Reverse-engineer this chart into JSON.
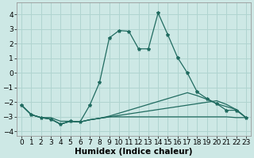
{
  "xlabel": "Humidex (Indice chaleur)",
  "xlim": [
    -0.5,
    23.5
  ],
  "ylim": [
    -4.3,
    4.8
  ],
  "xticks": [
    0,
    1,
    2,
    3,
    4,
    5,
    6,
    7,
    8,
    9,
    10,
    11,
    12,
    13,
    14,
    15,
    16,
    17,
    18,
    19,
    20,
    21,
    22,
    23
  ],
  "yticks": [
    -4,
    -3,
    -2,
    -1,
    0,
    1,
    2,
    3,
    4
  ],
  "bg_color": "#cde8e5",
  "grid_color": "#b0d4d0",
  "line_color": "#206b60",
  "line1": [
    [
      0,
      -2.2
    ],
    [
      1,
      -2.85
    ],
    [
      2,
      -3.05
    ],
    [
      3,
      -3.15
    ],
    [
      4,
      -3.5
    ],
    [
      5,
      -3.3
    ],
    [
      6,
      -3.35
    ],
    [
      7,
      -2.2
    ],
    [
      8,
      -0.65
    ],
    [
      9,
      2.4
    ],
    [
      10,
      2.9
    ],
    [
      11,
      2.85
    ],
    [
      12,
      1.65
    ],
    [
      13,
      1.65
    ],
    [
      14,
      4.1
    ],
    [
      15,
      2.6
    ],
    [
      16,
      1.05
    ],
    [
      17,
      0.0
    ],
    [
      18,
      -1.3
    ],
    [
      19,
      -1.75
    ],
    [
      20,
      -2.1
    ],
    [
      21,
      -2.55
    ],
    [
      22,
      -2.55
    ],
    [
      23,
      -3.05
    ]
  ],
  "line2": [
    [
      0,
      -2.2
    ],
    [
      1,
      -2.85
    ],
    [
      2,
      -3.05
    ],
    [
      3,
      -3.15
    ],
    [
      4,
      -3.5
    ],
    [
      5,
      -3.3
    ],
    [
      6,
      -3.35
    ],
    [
      7,
      -3.2
    ],
    [
      8,
      -3.1
    ],
    [
      9,
      -3.0
    ],
    [
      10,
      -2.9
    ],
    [
      11,
      -2.8
    ],
    [
      12,
      -2.7
    ],
    [
      13,
      -2.6
    ],
    [
      14,
      -2.5
    ],
    [
      15,
      -2.4
    ],
    [
      16,
      -2.3
    ],
    [
      17,
      -2.2
    ],
    [
      18,
      -2.1
    ],
    [
      19,
      -2.0
    ],
    [
      20,
      -1.9
    ],
    [
      21,
      -2.15
    ],
    [
      22,
      -2.5
    ],
    [
      23,
      -3.05
    ]
  ],
  "line3": [
    [
      0,
      -2.2
    ],
    [
      1,
      -2.85
    ],
    [
      2,
      -3.05
    ],
    [
      3,
      -3.15
    ],
    [
      4,
      -3.5
    ],
    [
      5,
      -3.3
    ],
    [
      6,
      -3.35
    ],
    [
      7,
      -3.2
    ],
    [
      8,
      -3.1
    ],
    [
      9,
      -2.95
    ],
    [
      10,
      -2.75
    ],
    [
      11,
      -2.55
    ],
    [
      12,
      -2.35
    ],
    [
      13,
      -2.15
    ],
    [
      14,
      -1.95
    ],
    [
      15,
      -1.75
    ],
    [
      16,
      -1.55
    ],
    [
      17,
      -1.35
    ],
    [
      18,
      -1.55
    ],
    [
      19,
      -1.8
    ],
    [
      20,
      -2.1
    ],
    [
      21,
      -2.3
    ],
    [
      22,
      -2.5
    ],
    [
      23,
      -3.05
    ]
  ],
  "line4": [
    [
      1,
      -2.85
    ],
    [
      2,
      -3.05
    ],
    [
      3,
      -3.05
    ],
    [
      4,
      -3.3
    ],
    [
      5,
      -3.3
    ],
    [
      6,
      -3.35
    ],
    [
      7,
      -3.2
    ],
    [
      8,
      -3.1
    ],
    [
      9,
      -3.0
    ],
    [
      10,
      -3.0
    ],
    [
      11,
      -3.0
    ],
    [
      12,
      -3.0
    ],
    [
      13,
      -3.0
    ],
    [
      14,
      -3.0
    ],
    [
      15,
      -3.0
    ],
    [
      16,
      -3.0
    ],
    [
      17,
      -3.0
    ],
    [
      18,
      -3.0
    ],
    [
      19,
      -3.0
    ],
    [
      20,
      -3.0
    ],
    [
      21,
      -3.0
    ],
    [
      22,
      -3.05
    ],
    [
      23,
      -3.05
    ]
  ],
  "marker": "*",
  "markersize": 3.0,
  "linewidth": 0.9,
  "xlabel_fontsize": 7.5,
  "tick_fontsize": 6.5
}
